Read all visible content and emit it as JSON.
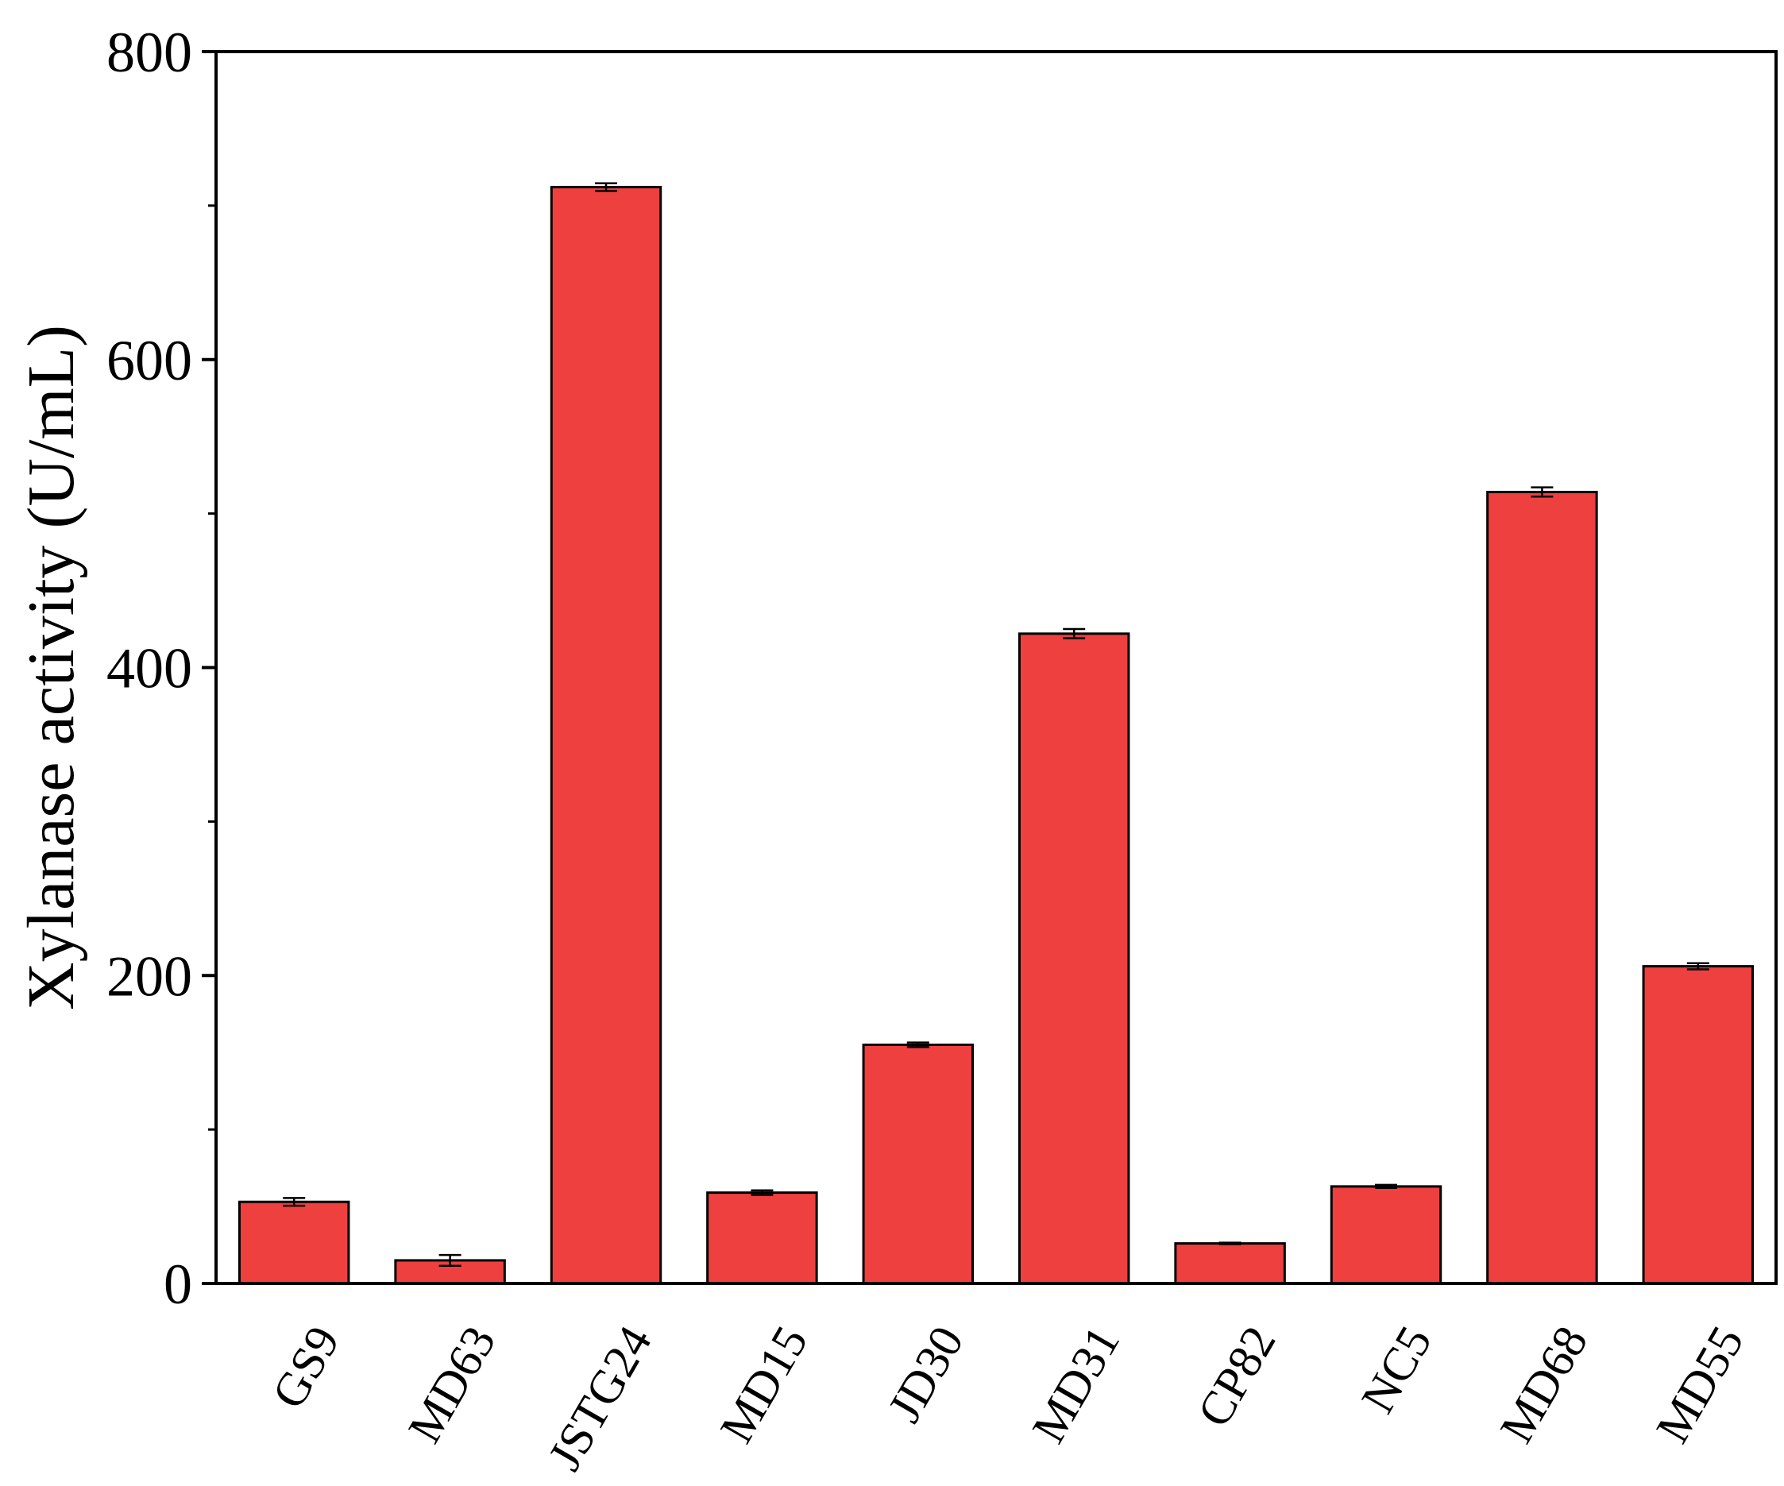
{
  "chart_data": {
    "type": "bar",
    "title": "",
    "xlabel": "",
    "ylabel": "Xylanase activity (U/mL)",
    "ylim": [
      0,
      800
    ],
    "yticks": [
      0,
      200,
      400,
      600,
      800
    ],
    "y_minor_ticks": [
      100,
      300,
      500,
      700
    ],
    "grid": false,
    "legend": "none",
    "bar_color": "#ef4040",
    "categories": [
      "GS9",
      "MD63",
      "JSTG24",
      "MD15",
      "JD30",
      "MD31",
      "CP82",
      "NC5",
      "MD68",
      "MD55"
    ],
    "values": [
      53,
      15,
      712,
      59,
      155,
      422,
      26,
      63,
      514,
      206
    ],
    "errors": [
      2.5,
      3.5,
      2.5,
      1.5,
      1.5,
      3,
      0.5,
      1,
      3,
      2
    ]
  }
}
